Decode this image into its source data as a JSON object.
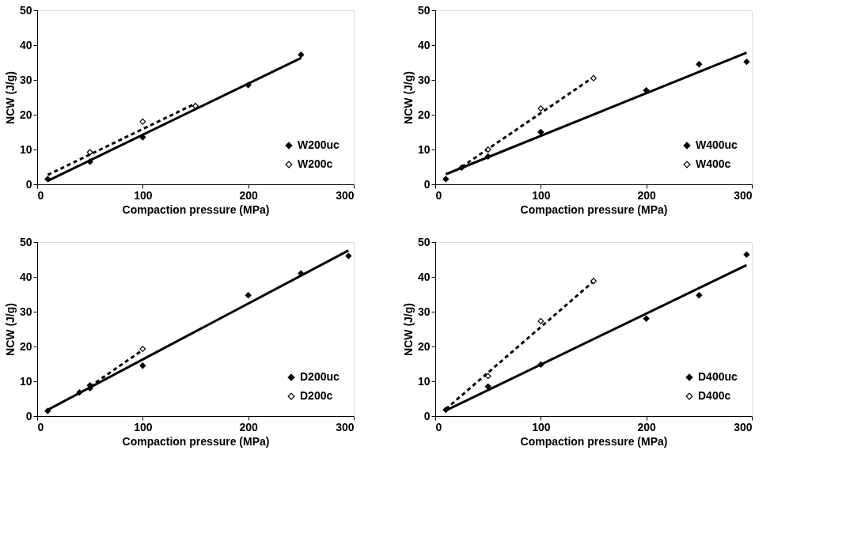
{
  "chart_data": [
    {
      "type": "scatter",
      "xlabel": "Compaction pressure (MPa)",
      "ylabel": "NCW (J/g)",
      "xlim": [
        0,
        300
      ],
      "ylim": [
        0,
        50
      ],
      "xticks": [
        0,
        100,
        200,
        300
      ],
      "yticks": [
        0,
        10,
        20,
        30,
        40,
        50
      ],
      "grid": false,
      "legend": "bottom right",
      "series": [
        {
          "name": "W200uc",
          "marker": "diamond",
          "color": "#000000",
          "x": [
            10,
            50,
            100,
            200,
            250
          ],
          "values": [
            1.5,
            6.5,
            13.5,
            28.5,
            37.2
          ]
        },
        {
          "name": "W200c",
          "marker": "diamond",
          "color": "#000000",
          "x": [
            50,
            100,
            150
          ],
          "values": [
            9.2,
            18,
            22.5
          ]
        },
        {
          "type": "line",
          "line_style": "solid",
          "color": "#000000",
          "x": [
            10,
            250
          ],
          "values": [
            1,
            36.3
          ]
        },
        {
          "type": "line",
          "line_style": "dashed",
          "color": "#000000",
          "x": [
            10,
            150
          ],
          "values": [
            2.7,
            23.2
          ]
        }
      ]
    },
    {
      "type": "scatter",
      "xlabel": "Compaction pressure (MPa)",
      "ylabel": "NCW (J/g)",
      "xlim": [
        0,
        300
      ],
      "ylim": [
        0,
        50
      ],
      "xticks": [
        0,
        100,
        200,
        300
      ],
      "yticks": [
        0,
        10,
        20,
        30,
        40,
        50
      ],
      "grid": false,
      "legend": "bottom right",
      "series": [
        {
          "name": "W400uc",
          "marker": "diamond",
          "color": "#000000",
          "x": [
            10,
            25,
            50,
            100,
            200,
            250,
            295
          ],
          "values": [
            1.5,
            4.8,
            8,
            15,
            27,
            34.5,
            35.2
          ]
        },
        {
          "name": "W400c",
          "marker": "diamond",
          "color": "#000000",
          "x": [
            50,
            100,
            150
          ],
          "values": [
            10,
            21.8,
            30.5
          ]
        },
        {
          "type": "line",
          "line_style": "solid",
          "color": "#000000",
          "x": [
            10,
            295
          ],
          "values": [
            2.9,
            37.8
          ]
        },
        {
          "type": "line",
          "line_style": "dashed",
          "color": "#000000",
          "x": [
            25,
            150
          ],
          "values": [
            5,
            30.8
          ]
        }
      ]
    },
    {
      "type": "scatter",
      "xlabel": "Compaction pressure (MPa)",
      "ylabel": "NCW (J/g)",
      "xlim": [
        0,
        300
      ],
      "ylim": [
        0,
        50
      ],
      "xticks": [
        0,
        100,
        200,
        300
      ],
      "yticks": [
        0,
        10,
        20,
        30,
        40,
        50
      ],
      "grid": false,
      "legend": "bottom right",
      "series": [
        {
          "name": "D200uc",
          "marker": "diamond",
          "color": "#000000",
          "x": [
            10,
            40,
            50,
            50,
            100,
            200,
            250,
            295
          ],
          "values": [
            1.5,
            6.8,
            8,
            8.8,
            14.5,
            34.7,
            41,
            46
          ]
        },
        {
          "name": "D200c",
          "marker": "diamond",
          "color": "#000000",
          "x": [
            100
          ],
          "values": [
            19.3
          ]
        },
        {
          "type": "line",
          "line_style": "solid",
          "color": "#000000",
          "x": [
            10,
            295
          ],
          "values": [
            1.8,
            47.6
          ]
        },
        {
          "type": "line",
          "line_style": "dashed",
          "color": "#000000",
          "x": [
            50,
            100
          ],
          "values": [
            8.5,
            19
          ]
        }
      ]
    },
    {
      "type": "scatter",
      "xlabel": "Compaction pressure (MPa)",
      "ylabel": "NCW (J/g)",
      "xlim": [
        0,
        300
      ],
      "ylim": [
        0,
        50
      ],
      "xticks": [
        0,
        100,
        200,
        300
      ],
      "yticks": [
        0,
        10,
        20,
        30,
        40,
        50
      ],
      "grid": false,
      "legend": "bottom right",
      "series": [
        {
          "name": "D400uc",
          "marker": "diamond",
          "color": "#000000",
          "x": [
            10,
            50,
            100,
            200,
            250,
            295
          ],
          "values": [
            1.8,
            8.5,
            14.8,
            28,
            34.7,
            46.4
          ]
        },
        {
          "name": "D400c",
          "marker": "diamond",
          "color": "#000000",
          "x": [
            50,
            100,
            150
          ],
          "values": [
            11.5,
            27.3,
            38.8
          ]
        },
        {
          "type": "line",
          "line_style": "solid",
          "color": "#000000",
          "x": [
            10,
            295
          ],
          "values": [
            1.6,
            43.4
          ]
        },
        {
          "type": "line",
          "line_style": "dashed",
          "color": "#000000",
          "x": [
            10,
            150
          ],
          "values": [
            2,
            38.7
          ]
        }
      ]
    }
  ]
}
